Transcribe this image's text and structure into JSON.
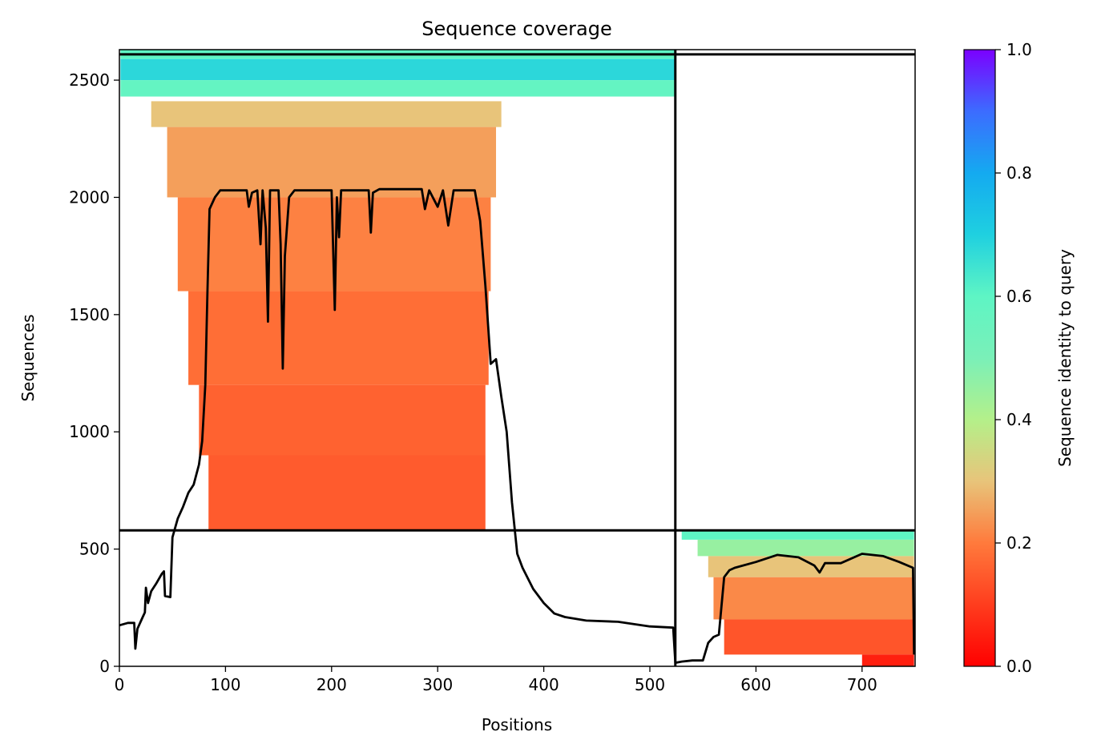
{
  "chart_data": {
    "type": "heatmap",
    "title": "Sequence coverage",
    "xlabel": "Positions",
    "ylabel": "Sequences",
    "xlim": [
      0,
      750
    ],
    "ylim": [
      0,
      2630
    ],
    "xticks": [
      0,
      100,
      200,
      300,
      400,
      500,
      600,
      700
    ],
    "yticks": [
      0,
      500,
      1000,
      1500,
      2000,
      2500
    ],
    "colorbar": {
      "label": "Sequence identity to query",
      "range": [
        0.0,
        1.0
      ],
      "ticks": [
        "0.0",
        "0.2",
        "0.4",
        "0.6",
        "0.8",
        "1.0"
      ],
      "colormap": "rainbow_r"
    },
    "chain_boundary_x": 524,
    "group_boundaries_y": [
      580,
      2610
    ],
    "coverage_line": {
      "name": "coverage",
      "color": "#000000",
      "points": [
        [
          0,
          175
        ],
        [
          8,
          185
        ],
        [
          14,
          185
        ],
        [
          15,
          75
        ],
        [
          17,
          160
        ],
        [
          22,
          210
        ],
        [
          24,
          230
        ],
        [
          25,
          335
        ],
        [
          27,
          270
        ],
        [
          30,
          320
        ],
        [
          35,
          355
        ],
        [
          40,
          395
        ],
        [
          42,
          405
        ],
        [
          43,
          300
        ],
        [
          48,
          295
        ],
        [
          50,
          550
        ],
        [
          55,
          630
        ],
        [
          60,
          680
        ],
        [
          65,
          740
        ],
        [
          70,
          775
        ],
        [
          75,
          860
        ],
        [
          78,
          960
        ],
        [
          81,
          1200
        ],
        [
          83,
          1600
        ],
        [
          85,
          1950
        ],
        [
          90,
          2000
        ],
        [
          95,
          2030
        ],
        [
          120,
          2030
        ],
        [
          122,
          1960
        ],
        [
          125,
          2020
        ],
        [
          130,
          2030
        ],
        [
          133,
          1800
        ],
        [
          135,
          2030
        ],
        [
          138,
          1870
        ],
        [
          140,
          1470
        ],
        [
          142,
          2030
        ],
        [
          150,
          2030
        ],
        [
          152,
          1800
        ],
        [
          154,
          1270
        ],
        [
          156,
          1750
        ],
        [
          160,
          2000
        ],
        [
          165,
          2030
        ],
        [
          200,
          2030
        ],
        [
          203,
          1520
        ],
        [
          205,
          2000
        ],
        [
          207,
          1830
        ],
        [
          209,
          2030
        ],
        [
          235,
          2030
        ],
        [
          237,
          1850
        ],
        [
          239,
          2020
        ],
        [
          245,
          2035
        ],
        [
          285,
          2035
        ],
        [
          288,
          1950
        ],
        [
          292,
          2030
        ],
        [
          300,
          1960
        ],
        [
          305,
          2030
        ],
        [
          310,
          1880
        ],
        [
          315,
          2030
        ],
        [
          335,
          2030
        ],
        [
          340,
          1900
        ],
        [
          345,
          1620
        ],
        [
          350,
          1290
        ],
        [
          355,
          1310
        ],
        [
          360,
          1150
        ],
        [
          365,
          1000
        ],
        [
          370,
          700
        ],
        [
          375,
          480
        ],
        [
          380,
          420
        ],
        [
          390,
          330
        ],
        [
          400,
          270
        ],
        [
          410,
          225
        ],
        [
          420,
          210
        ],
        [
          440,
          195
        ],
        [
          470,
          190
        ],
        [
          500,
          170
        ],
        [
          522,
          165
        ],
        [
          524,
          15
        ],
        [
          530,
          20
        ],
        [
          540,
          25
        ],
        [
          550,
          25
        ],
        [
          555,
          100
        ],
        [
          560,
          125
        ],
        [
          565,
          135
        ],
        [
          570,
          380
        ],
        [
          575,
          410
        ],
        [
          580,
          420
        ],
        [
          600,
          445
        ],
        [
          620,
          475
        ],
        [
          640,
          465
        ],
        [
          655,
          430
        ],
        [
          660,
          400
        ],
        [
          665,
          440
        ],
        [
          680,
          440
        ],
        [
          700,
          480
        ],
        [
          720,
          470
        ],
        [
          735,
          445
        ],
        [
          748,
          420
        ],
        [
          749,
          50
        ]
      ]
    },
    "alignment_blocks": [
      {
        "x0": 1,
        "x1": 524,
        "y0": 2590,
        "y1": 2630,
        "identity": 0.6
      },
      {
        "x0": 1,
        "x1": 524,
        "y0": 2500,
        "y1": 2590,
        "identity": 0.68
      },
      {
        "x0": 1,
        "x1": 524,
        "y0": 2430,
        "y1": 2500,
        "identity": 0.58
      },
      {
        "x0": 30,
        "x1": 360,
        "y0": 2300,
        "y1": 2410,
        "identity": 0.3
      },
      {
        "x0": 45,
        "x1": 355,
        "y0": 2000,
        "y1": 2300,
        "identity": 0.25
      },
      {
        "x0": 55,
        "x1": 350,
        "y0": 1600,
        "y1": 2000,
        "identity": 0.21
      },
      {
        "x0": 65,
        "x1": 348,
        "y0": 1200,
        "y1": 1600,
        "identity": 0.18
      },
      {
        "x0": 75,
        "x1": 345,
        "y0": 900,
        "y1": 1200,
        "identity": 0.16
      },
      {
        "x0": 84,
        "x1": 345,
        "y0": 580,
        "y1": 900,
        "identity": 0.15
      },
      {
        "x0": 530,
        "x1": 749,
        "y0": 540,
        "y1": 580,
        "identity": 0.6
      },
      {
        "x0": 545,
        "x1": 749,
        "y0": 470,
        "y1": 540,
        "identity": 0.45
      },
      {
        "x0": 555,
        "x1": 749,
        "y0": 380,
        "y1": 470,
        "identity": 0.3
      },
      {
        "x0": 560,
        "x1": 749,
        "y0": 200,
        "y1": 380,
        "identity": 0.22
      },
      {
        "x0": 570,
        "x1": 749,
        "y0": 50,
        "y1": 200,
        "identity": 0.14
      },
      {
        "x0": 700,
        "x1": 749,
        "y0": 0,
        "y1": 50,
        "identity": 0.05
      }
    ]
  }
}
